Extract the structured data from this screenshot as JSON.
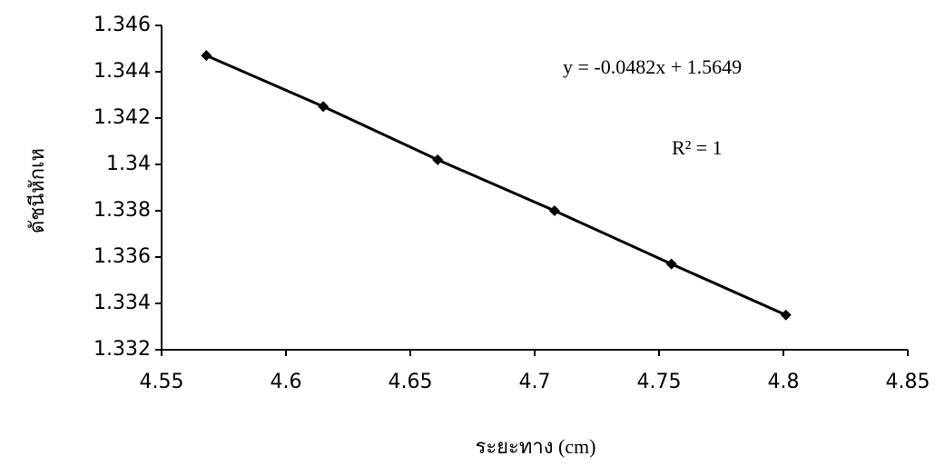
{
  "chart_data": {
    "type": "line",
    "x_label": "ระยะทาง (cm)",
    "y_label": "ดัชนีหักเห",
    "annotations": [
      "y = -0.0482x + 1.5649",
      "R² = 1"
    ],
    "x": [
      4.568,
      4.615,
      4.661,
      4.708,
      4.755,
      4.801
    ],
    "series": [
      {
        "color": "#000000",
        "values": [
          1.3447,
          1.3425,
          1.3402,
          1.338,
          1.3357,
          1.3335
        ]
      }
    ],
    "xlim": [
      4.55,
      4.85
    ],
    "xticks": [
      4.55,
      4.6,
      4.65,
      4.7,
      4.75,
      4.8,
      4.85
    ],
    "ylim": [
      1.332,
      1.346
    ],
    "yticks": [
      1.332,
      1.334,
      1.336,
      1.338,
      1.34,
      1.342,
      1.344,
      1.346
    ],
    "grid": false,
    "markers": "diamond"
  }
}
